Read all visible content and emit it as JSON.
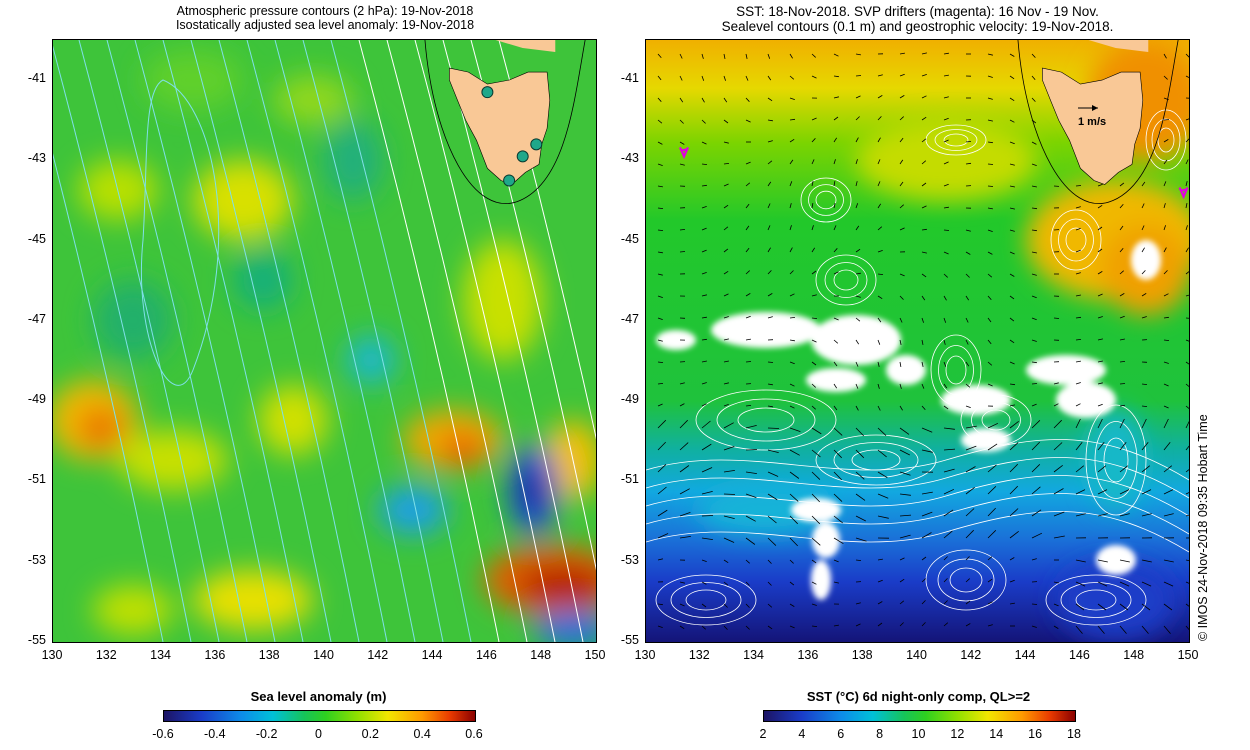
{
  "left_panel": {
    "title_line1": "Atmospheric pressure contours (2 hPa): 19-Nov-2018",
    "title_line2": "Isostatically adjusted sea level anomaly: 19-Nov-2018",
    "colorbar_label": "Sea level anomaly (m)",
    "colorbar_ticks": [
      "-0.6",
      "-0.4",
      "-0.2",
      "0",
      "0.2",
      "0.4",
      "0.6"
    ]
  },
  "right_panel": {
    "title_line1": "SST: 18-Nov-2018. SVP drifters (magenta): 16 Nov - 19 Nov.",
    "title_line2": "Sealevel contours (0.1 m) and geostrophic velocity: 19-Nov-2018.",
    "velocity_scale_label": "1 m/s",
    "colorbar_label": "SST (°C) 6d night-only comp, QL>=2",
    "colorbar_ticks": [
      "2",
      "4",
      "6",
      "8",
      "10",
      "12",
      "14",
      "16",
      "18"
    ]
  },
  "axes": {
    "lat_ticks": [
      "-41",
      "-43",
      "-45",
      "-47",
      "-49",
      "-51",
      "-53",
      "-55"
    ],
    "lon_ticks": [
      "130",
      "132",
      "134",
      "136",
      "138",
      "140",
      "142",
      "144",
      "146",
      "148",
      "150"
    ],
    "lon_range": [
      130,
      150
    ],
    "lat_range": [
      -55,
      -40
    ]
  },
  "credit": "© IMOS 24-Nov-2018 09:35 Hobart Time",
  "colors": {
    "land": "#f9c896",
    "pressure_contour": "#7fe0e8",
    "sealevel_contour": "#ffffff",
    "drifter": "#e000e0",
    "tide_gauge": "#1fa88a"
  },
  "tide_gauges": [
    {
      "lon": 146.0,
      "lat": -41.3
    },
    {
      "lon": 147.8,
      "lat": -42.6
    },
    {
      "lon": 147.3,
      "lat": -42.9
    },
    {
      "lon": 146.8,
      "lat": -43.5
    }
  ],
  "drifters": [
    {
      "lon": 131.4,
      "lat": -42.8
    },
    {
      "lon": 149.8,
      "lat": -43.8
    }
  ]
}
